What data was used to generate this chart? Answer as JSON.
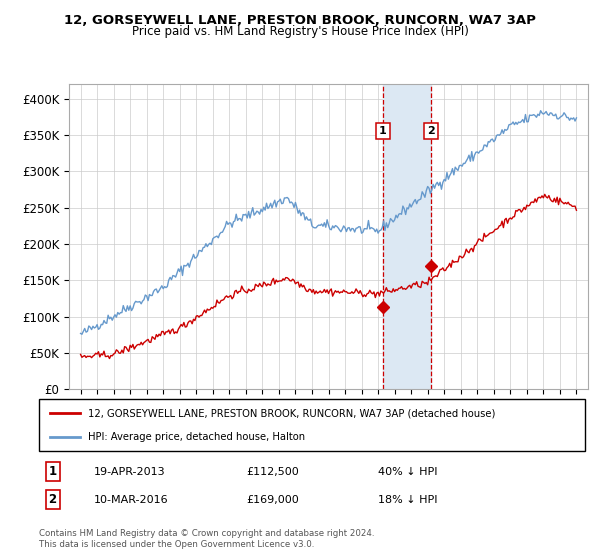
{
  "title1": "12, GORSEYWELL LANE, PRESTON BROOK, RUNCORN, WA7 3AP",
  "title2": "Price paid vs. HM Land Registry's House Price Index (HPI)",
  "ylim": [
    0,
    420000
  ],
  "yticks": [
    0,
    50000,
    100000,
    150000,
    200000,
    250000,
    300000,
    350000,
    400000
  ],
  "ytick_labels": [
    "£0",
    "£50K",
    "£100K",
    "£150K",
    "£200K",
    "£250K",
    "£300K",
    "£350K",
    "£400K"
  ],
  "legend_line1": "12, GORSEYWELL LANE, PRESTON BROOK, RUNCORN, WA7 3AP (detached house)",
  "legend_line2": "HPI: Average price, detached house, Halton",
  "point1_date": "19-APR-2013",
  "point1_price": 112500,
  "point1_hpi_pct": "40% ↓ HPI",
  "point2_date": "10-MAR-2016",
  "point2_price": 169000,
  "point2_hpi_pct": "18% ↓ HPI",
  "sale_color": "#cc0000",
  "hpi_color": "#6699cc",
  "highlight_box_color": "#dce8f3",
  "highlight_box_edge": "#cc0000",
  "footnote": "Contains HM Land Registry data © Crown copyright and database right 2024.\nThis data is licensed under the Open Government Licence v3.0."
}
